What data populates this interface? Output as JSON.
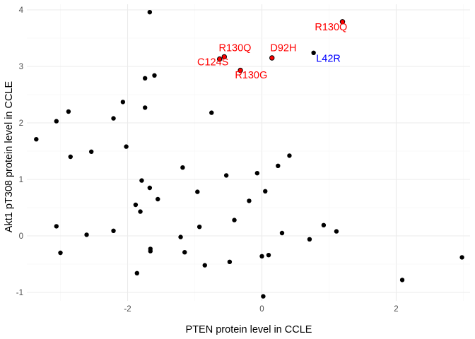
{
  "chart_data": {
    "type": "scatter",
    "title": "",
    "xlabel": "PTEN protein level in CCLE",
    "ylabel": "Akt1 pT308 protein level in CCLE",
    "xlim": [
      -3.5,
      3.1
    ],
    "ylim": [
      -1.15,
      4.1
    ],
    "x_ticks": [
      {
        "value": -2,
        "label": "-2"
      },
      {
        "value": 0,
        "label": "0"
      },
      {
        "value": 2,
        "label": "2"
      }
    ],
    "y_ticks": [
      {
        "value": -1,
        "label": "-1"
      },
      {
        "value": 0,
        "label": "0"
      },
      {
        "value": 1,
        "label": "1"
      },
      {
        "value": 2,
        "label": "2"
      },
      {
        "value": 3,
        "label": "3"
      },
      {
        "value": 4,
        "label": "4"
      }
    ],
    "grid": true,
    "point_color": "#000000",
    "highlight_color": "#ff0000",
    "points": [
      {
        "x": -1.67,
        "y": 3.96
      },
      {
        "x": -1.6,
        "y": 2.84
      },
      {
        "x": -1.74,
        "y": 2.79
      },
      {
        "x": -2.07,
        "y": 2.37
      },
      {
        "x": -1.74,
        "y": 2.27
      },
      {
        "x": -2.21,
        "y": 2.08
      },
      {
        "x": -2.88,
        "y": 2.2
      },
      {
        "x": -3.06,
        "y": 2.03
      },
      {
        "x": -0.75,
        "y": 2.18
      },
      {
        "x": -3.36,
        "y": 1.71
      },
      {
        "x": -2.02,
        "y": 1.58
      },
      {
        "x": -2.54,
        "y": 1.49
      },
      {
        "x": -2.85,
        "y": 1.4
      },
      {
        "x": 0.41,
        "y": 1.42
      },
      {
        "x": 0.24,
        "y": 1.24
      },
      {
        "x": -1.18,
        "y": 1.21
      },
      {
        "x": -0.07,
        "y": 1.11
      },
      {
        "x": -0.53,
        "y": 1.07
      },
      {
        "x": -1.79,
        "y": 0.98
      },
      {
        "x": -1.67,
        "y": 0.85
      },
      {
        "x": -0.96,
        "y": 0.78
      },
      {
        "x": 0.05,
        "y": 0.79
      },
      {
        "x": -1.55,
        "y": 0.65
      },
      {
        "x": -0.19,
        "y": 0.62
      },
      {
        "x": -1.88,
        "y": 0.55
      },
      {
        "x": -1.81,
        "y": 0.43
      },
      {
        "x": -0.41,
        "y": 0.28
      },
      {
        "x": 0.92,
        "y": 0.19
      },
      {
        "x": -3.06,
        "y": 0.17
      },
      {
        "x": -0.93,
        "y": 0.16
      },
      {
        "x": -2.21,
        "y": 0.09
      },
      {
        "x": 1.11,
        "y": 0.08
      },
      {
        "x": 0.3,
        "y": 0.05
      },
      {
        "x": -2.61,
        "y": 0.02
      },
      {
        "x": -1.21,
        "y": -0.02
      },
      {
        "x": 0.71,
        "y": -0.06
      },
      {
        "x": -1.66,
        "y": -0.23
      },
      {
        "x": -1.66,
        "y": -0.27
      },
      {
        "x": -3.0,
        "y": -0.3
      },
      {
        "x": -1.15,
        "y": -0.29
      },
      {
        "x": 0.1,
        "y": -0.34
      },
      {
        "x": 0.0,
        "y": -0.36
      },
      {
        "x": 2.98,
        "y": -0.38
      },
      {
        "x": -0.48,
        "y": -0.46
      },
      {
        "x": -0.85,
        "y": -0.52
      },
      {
        "x": -1.86,
        "y": -0.66
      },
      {
        "x": 2.09,
        "y": -0.78
      },
      {
        "x": 0.02,
        "y": -1.07
      },
      {
        "x": 0.77,
        "y": 3.24
      }
    ],
    "highlighted_points": [
      {
        "x": -0.56,
        "y": 3.17
      },
      {
        "x": -0.63,
        "y": 3.13
      },
      {
        "x": -0.32,
        "y": 2.93
      },
      {
        "x": 0.15,
        "y": 3.15
      },
      {
        "x": 1.2,
        "y": 3.79
      }
    ],
    "annotations": [
      {
        "text": "R130Q",
        "x": -0.4,
        "y": 3.27,
        "color": "#ff0000"
      },
      {
        "text": "C124S",
        "x": -0.73,
        "y": 3.02,
        "color": "#ff0000"
      },
      {
        "text": "R130G",
        "x": -0.16,
        "y": 2.79,
        "color": "#ff0000"
      },
      {
        "text": "D92H",
        "x": 0.32,
        "y": 3.27,
        "color": "#ff0000"
      },
      {
        "text": "R130Q",
        "x": 1.03,
        "y": 3.64,
        "color": "#ff0000"
      },
      {
        "text": "L42R",
        "x": 0.99,
        "y": 3.08,
        "color": "#0000ff"
      }
    ]
  }
}
